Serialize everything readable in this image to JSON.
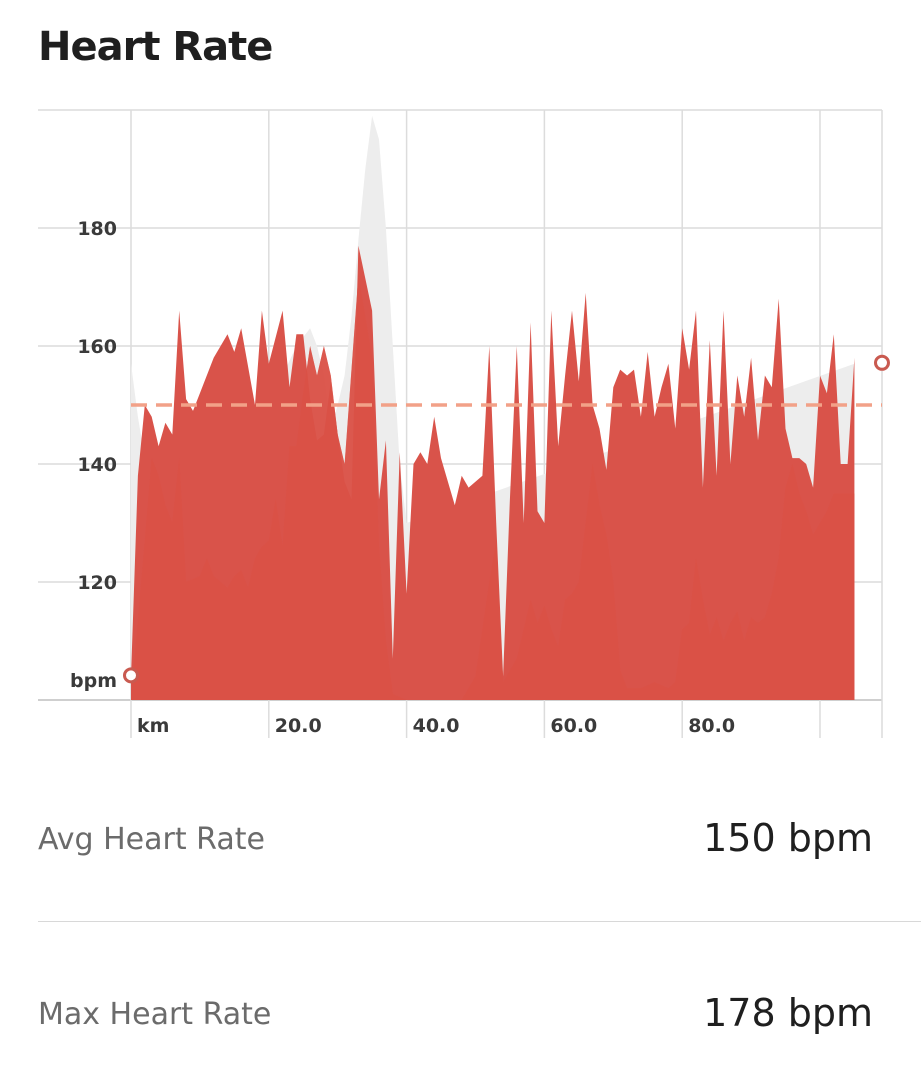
{
  "title": "Heart Rate",
  "chart_data": {
    "type": "area",
    "y_unit_label": "bpm",
    "x_unit_label": "km",
    "yticks": [
      "120",
      "140",
      "160",
      "180"
    ],
    "ytick_values": [
      120,
      140,
      160,
      180
    ],
    "xticks": [
      "20.0",
      "40.0",
      "60.0",
      "80.0"
    ],
    "xtick_values": [
      20,
      40,
      60,
      80
    ],
    "xlim": [
      0,
      109
    ],
    "ylim": [
      100,
      200
    ],
    "average_line": 150,
    "grid": true,
    "colors": {
      "main": "#d9534a",
      "overlay": "#e3584b",
      "elevation": "#ededed",
      "average": "#f2a188",
      "marker": "#c95a50"
    },
    "series": [
      {
        "values": [
          [
            0,
            104
          ],
          [
            1,
            138
          ],
          [
            2,
            150
          ],
          [
            3,
            148
          ],
          [
            4,
            143
          ],
          [
            5,
            147
          ],
          [
            6,
            145
          ],
          [
            7,
            166
          ],
          [
            8,
            151
          ],
          [
            9,
            149
          ],
          [
            10,
            152
          ],
          [
            12,
            158
          ],
          [
            14,
            162
          ],
          [
            15,
            159
          ],
          [
            16,
            163
          ],
          [
            18,
            150
          ],
          [
            19,
            166
          ],
          [
            20,
            157
          ],
          [
            22,
            166
          ],
          [
            23,
            153
          ],
          [
            24,
            162
          ],
          [
            25,
            162
          ],
          [
            26,
            151
          ],
          [
            27,
            144
          ],
          [
            28,
            145
          ],
          [
            29,
            154
          ],
          [
            30,
            145
          ],
          [
            31,
            137
          ],
          [
            32,
            134
          ],
          [
            33,
            177
          ],
          [
            35,
            166
          ],
          [
            36,
            134
          ],
          [
            37,
            144
          ],
          [
            38,
            107
          ],
          [
            39,
            142
          ],
          [
            40,
            118
          ],
          [
            41,
            140
          ],
          [
            42,
            142
          ],
          [
            43,
            140
          ],
          [
            44,
            148
          ],
          [
            45,
            141
          ],
          [
            47,
            133
          ],
          [
            48,
            138
          ],
          [
            49,
            136
          ],
          [
            51,
            138
          ],
          [
            52,
            160
          ],
          [
            53,
            130
          ],
          [
            54,
            104
          ],
          [
            55,
            134
          ],
          [
            56,
            160
          ],
          [
            57,
            130
          ],
          [
            58,
            164
          ],
          [
            59,
            132
          ],
          [
            60,
            130
          ],
          [
            61,
            166
          ],
          [
            62,
            143
          ],
          [
            63,
            155
          ],
          [
            64,
            166
          ],
          [
            65,
            154
          ],
          [
            66,
            169
          ],
          [
            67,
            150
          ],
          [
            68,
            146
          ],
          [
            69,
            139
          ],
          [
            70,
            153
          ],
          [
            71,
            156
          ],
          [
            72,
            155
          ],
          [
            73,
            156
          ],
          [
            74,
            148
          ],
          [
            75,
            159
          ],
          [
            76,
            148
          ],
          [
            77,
            153
          ],
          [
            78,
            157
          ],
          [
            79,
            146
          ],
          [
            80,
            163
          ],
          [
            81,
            156
          ],
          [
            82,
            166
          ],
          [
            83,
            136
          ],
          [
            84,
            161
          ],
          [
            85,
            138
          ],
          [
            86,
            166
          ],
          [
            87,
            140
          ],
          [
            88,
            155
          ],
          [
            89,
            148
          ],
          [
            90,
            158
          ],
          [
            91,
            144
          ],
          [
            92,
            155
          ],
          [
            93,
            153
          ],
          [
            94,
            168
          ],
          [
            95,
            146
          ],
          [
            96,
            141
          ],
          [
            97,
            141
          ],
          [
            98,
            140
          ],
          [
            99,
            136
          ],
          [
            100,
            155
          ],
          [
            101,
            152
          ],
          [
            102,
            162
          ],
          [
            103,
            140
          ],
          [
            104,
            140
          ],
          [
            105,
            158
          ]
        ]
      },
      {
        "values": [
          [
            0,
            100
          ],
          [
            2,
            127
          ],
          [
            3,
            141
          ],
          [
            4,
            138
          ],
          [
            5,
            133
          ],
          [
            6,
            130
          ],
          [
            7,
            141
          ],
          [
            8,
            120
          ],
          [
            10,
            121
          ],
          [
            11,
            124
          ],
          [
            12,
            121
          ],
          [
            14,
            119
          ],
          [
            15,
            121
          ],
          [
            16,
            122
          ],
          [
            17,
            119
          ],
          [
            18,
            124
          ],
          [
            19,
            126
          ],
          [
            20,
            127
          ],
          [
            21,
            134
          ],
          [
            22,
            126
          ],
          [
            23,
            143
          ],
          [
            24,
            143
          ],
          [
            25,
            152
          ],
          [
            26,
            160
          ],
          [
            27,
            155
          ],
          [
            28,
            160
          ],
          [
            29,
            155
          ],
          [
            30,
            145
          ],
          [
            31,
            140
          ],
          [
            33,
            172
          ],
          [
            35,
            158
          ],
          [
            36,
            126
          ],
          [
            37,
            110
          ],
          [
            38,
            101
          ],
          [
            40,
            100
          ],
          [
            48,
            100
          ],
          [
            50,
            104
          ],
          [
            52,
            120
          ],
          [
            53,
            127
          ],
          [
            54,
            103
          ],
          [
            56,
            107
          ],
          [
            58,
            117
          ],
          [
            59,
            113
          ],
          [
            60,
            116
          ],
          [
            61,
            112
          ],
          [
            62,
            109
          ],
          [
            63,
            117
          ],
          [
            64,
            118
          ],
          [
            65,
            120
          ],
          [
            66,
            130
          ],
          [
            67,
            140
          ],
          [
            68,
            133
          ],
          [
            69,
            128
          ],
          [
            70,
            120
          ],
          [
            71,
            105
          ],
          [
            72,
            102
          ],
          [
            74,
            102
          ],
          [
            76,
            103
          ],
          [
            78,
            102
          ],
          [
            79,
            103
          ],
          [
            80,
            112
          ],
          [
            81,
            113
          ],
          [
            82,
            124
          ],
          [
            83,
            117
          ],
          [
            84,
            111
          ],
          [
            85,
            114
          ],
          [
            86,
            110
          ],
          [
            87,
            113
          ],
          [
            88,
            115
          ],
          [
            89,
            110
          ],
          [
            90,
            114
          ],
          [
            91,
            113
          ],
          [
            92,
            114
          ],
          [
            93,
            118
          ],
          [
            94,
            124
          ],
          [
            95,
            136
          ],
          [
            96,
            140
          ],
          [
            97,
            135
          ],
          [
            98,
            132
          ],
          [
            99,
            128
          ],
          [
            100,
            130
          ],
          [
            101,
            132
          ],
          [
            102,
            135
          ],
          [
            103,
            135
          ],
          [
            104,
            135
          ],
          [
            105,
            135
          ]
        ]
      },
      {
        "name": "elevation",
        "values": [
          [
            0,
            157
          ],
          [
            1,
            148
          ],
          [
            2,
            141
          ],
          [
            3,
            133
          ],
          [
            6,
            128
          ],
          [
            10,
            133
          ],
          [
            15,
            137
          ],
          [
            20,
            146
          ],
          [
            22,
            155
          ],
          [
            24,
            160
          ],
          [
            26,
            163
          ],
          [
            27,
            160
          ],
          [
            28,
            155
          ],
          [
            29,
            146
          ],
          [
            30,
            150
          ],
          [
            31,
            155
          ],
          [
            32,
            165
          ],
          [
            33,
            178
          ],
          [
            34,
            190
          ],
          [
            35,
            199
          ],
          [
            36,
            195
          ],
          [
            37,
            180
          ],
          [
            38,
            160
          ],
          [
            39,
            140
          ],
          [
            40,
            130
          ],
          [
            105,
            157
          ]
        ]
      }
    ]
  },
  "stats": [
    {
      "label": "Avg Heart Rate",
      "value": "150 bpm"
    },
    {
      "label": "Max Heart Rate",
      "value": "178 bpm"
    }
  ]
}
